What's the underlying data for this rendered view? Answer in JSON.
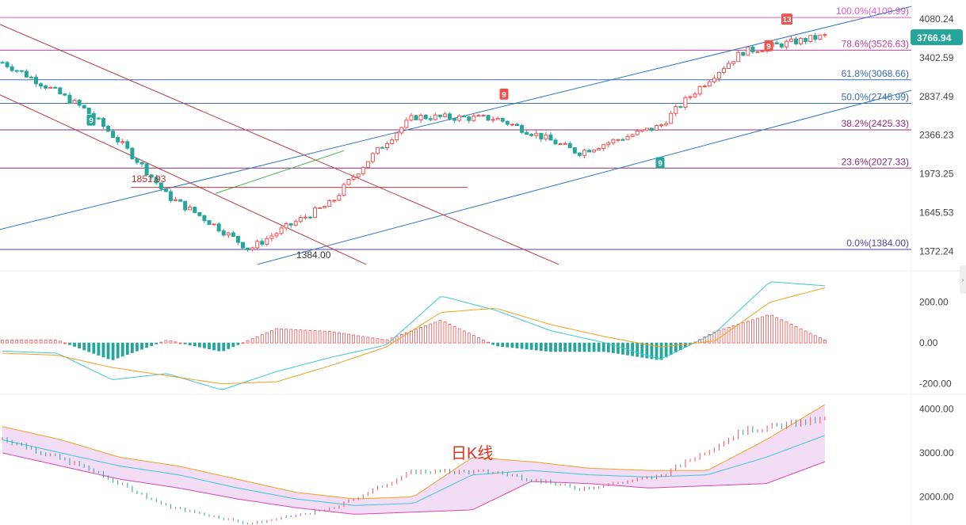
{
  "chart_data": [
    {
      "type": "candlestick",
      "panel": "price",
      "y_ticks": [
        "4080.24",
        "3402.59",
        "2837.49",
        "2366.23",
        "1973.25",
        "1645.53",
        "1372.24"
      ],
      "ylim": [
        1280,
        4300
      ],
      "scale": "log",
      "last_price": "3766.94",
      "fib_levels": [
        {
          "label": "100.0%(4109.99)",
          "value": 4109.99,
          "color": "#e05ad0"
        },
        {
          "label": "78.6%(3526.63)",
          "value": 3526.63,
          "color": "#c040a0"
        },
        {
          "label": "61.8%(3068.66)",
          "value": 3068.66,
          "color": "#3b6bb0"
        },
        {
          "label": "50.0%(2746.99)",
          "value": 2746.99,
          "color": "#3b6bb0"
        },
        {
          "label": "38.2%(2425.33)",
          "value": 2425.33,
          "color": "#8e2c7a"
        },
        {
          "label": "23.6%(2027.33)",
          "value": 2027.33,
          "color": "#8e2c7a"
        },
        {
          "label": "0.0%(1384.00)",
          "value": 1384.0,
          "color": "#5a3fa0"
        }
      ],
      "annotations": [
        {
          "text": "1851.93",
          "color": "#c03030"
        },
        {
          "text": "1384.00",
          "color": "#333333"
        }
      ],
      "markers": [
        {
          "text": "9",
          "color": "#26a69a"
        },
        {
          "text": "9",
          "color": "#ef5350"
        },
        {
          "text": "9",
          "color": "#26a69a"
        },
        {
          "text": "9",
          "color": "#ef5350"
        },
        {
          "text": "13",
          "color": "#ef5350"
        }
      ],
      "key_points": [
        3330,
        2670,
        1780,
        1384,
        1720,
        2580,
        2560,
        2180,
        2470,
        3500,
        3766.94
      ]
    },
    {
      "type": "macd",
      "panel": "indicator",
      "y_ticks": [
        "200.00",
        "0.00",
        "-200.00"
      ],
      "ylim": [
        -240,
        330
      ],
      "dif_points": [
        -40,
        -50,
        -180,
        -150,
        -230,
        -140,
        -70,
        -10,
        230,
        160,
        60,
        0,
        -80,
        50,
        300,
        280
      ],
      "dea_points": [
        -50,
        -60,
        -120,
        -160,
        -200,
        -190,
        -110,
        -20,
        150,
        170,
        90,
        30,
        -20,
        10,
        200,
        270
      ]
    },
    {
      "type": "bollinger",
      "panel": "bands",
      "y_ticks": [
        "4000.00",
        "3000.00",
        "2000.00"
      ],
      "ylim": [
        1500,
        4300
      ],
      "note": "日K线",
      "mid_points": [
        3300,
        3000,
        2700,
        2500,
        2200,
        1950,
        1800,
        1850,
        2500,
        2600,
        2500,
        2450,
        2500,
        2900,
        3400
      ],
      "upper_points": [
        3600,
        3300,
        2900,
        2700,
        2400,
        2100,
        1950,
        2000,
        2900,
        2800,
        2650,
        2600,
        2600,
        3300,
        4100
      ],
      "lower_points": [
        3000,
        2700,
        2400,
        2200,
        1950,
        1750,
        1600,
        1650,
        1700,
        2350,
        2300,
        2200,
        2250,
        2300,
        2800
      ]
    }
  ]
}
